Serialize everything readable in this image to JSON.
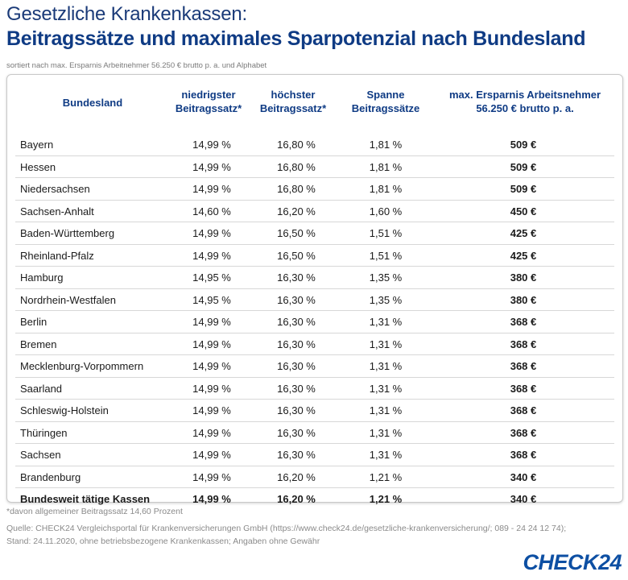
{
  "header": {
    "title_line1": "Gesetzliche Krankenkassen:",
    "title_line2": "Beitragssätze und maximales Sparpotenzial nach Bundesland",
    "subtitle": "sortiert nach max. Ersparnis Arbeitnehmer 56.250 € brutto p. a. und Alphabet"
  },
  "table": {
    "columns": {
      "land": "Bundesland",
      "min_line1": "niedrigster",
      "min_line2": "Beitragssatz*",
      "max_line1": "höchster",
      "max_line2": "Beitragssatz*",
      "span_line1": "Spanne",
      "span_line2": "Beitragssätze",
      "save_line1": "max. Ersparnis Arbeitsnehmer",
      "save_line2": "56.250 € brutto p. a."
    },
    "rows": [
      {
        "land": "Bayern",
        "min": "14,99 %",
        "max": "16,80 %",
        "span": "1,81 %",
        "save": "509 €"
      },
      {
        "land": "Hessen",
        "min": "14,99 %",
        "max": "16,80 %",
        "span": "1,81 %",
        "save": "509 €"
      },
      {
        "land": "Niedersachsen",
        "min": "14,99 %",
        "max": "16,80 %",
        "span": "1,81 %",
        "save": "509 €"
      },
      {
        "land": "Sachsen-Anhalt",
        "min": "14,60 %",
        "max": "16,20 %",
        "span": "1,60 %",
        "save": "450 €"
      },
      {
        "land": "Baden-Württemberg",
        "min": "14,99 %",
        "max": "16,50 %",
        "span": "1,51 %",
        "save": "425 €"
      },
      {
        "land": "Rheinland-Pfalz",
        "min": "14,99 %",
        "max": "16,50 %",
        "span": "1,51 %",
        "save": "425 €"
      },
      {
        "land": "Hamburg",
        "min": "14,95 %",
        "max": "16,30 %",
        "span": "1,35 %",
        "save": "380 €"
      },
      {
        "land": "Nordrhein-Westfalen",
        "min": "14,95 %",
        "max": "16,30 %",
        "span": "1,35 %",
        "save": "380 €"
      },
      {
        "land": "Berlin",
        "min": "14,99 %",
        "max": "16,30 %",
        "span": "1,31 %",
        "save": "368 €"
      },
      {
        "land": "Bremen",
        "min": "14,99 %",
        "max": "16,30 %",
        "span": "1,31 %",
        "save": "368 €"
      },
      {
        "land": "Mecklenburg-Vorpommern",
        "min": "14,99 %",
        "max": "16,30 %",
        "span": "1,31 %",
        "save": "368 €"
      },
      {
        "land": "Saarland",
        "min": "14,99 %",
        "max": "16,30 %",
        "span": "1,31 %",
        "save": "368 €"
      },
      {
        "land": "Schleswig-Holstein",
        "min": "14,99 %",
        "max": "16,30 %",
        "span": "1,31 %",
        "save": "368 €"
      },
      {
        "land": "Thüringen",
        "min": "14,99 %",
        "max": "16,30 %",
        "span": "1,31 %",
        "save": "368 €"
      },
      {
        "land": "Sachsen",
        "min": "14,99 %",
        "max": "16,30 %",
        "span": "1,31 %",
        "save": "368 €"
      },
      {
        "land": "Brandenburg",
        "min": "14,99 %",
        "max": "16,20 %",
        "span": "1,21 %",
        "save": "340 €"
      }
    ],
    "total": {
      "land": "Bundesweit tätige Kassen",
      "min": "14,99 %",
      "max": "16,20 %",
      "span": "1,21 %",
      "save": "340 €"
    }
  },
  "footer": {
    "footnote": "*davon allgemeiner Beitragssatz 14,60 Prozent",
    "source": "Quelle: CHECK24 Vergleichsportal für Krankenversicherungen GmbH (https://www.check24.de/gesetzliche-krankenversicherung/; 089 - 24 24 12 74); Stand: 24.11.2020, ohne betriebsbezogene Krankenkassen; Angaben ohne Gewähr",
    "logo": "CHECK24"
  },
  "colors": {
    "accent": "#0f3b84",
    "logo": "#0d4fa3",
    "muted": "#8a8a8a"
  }
}
